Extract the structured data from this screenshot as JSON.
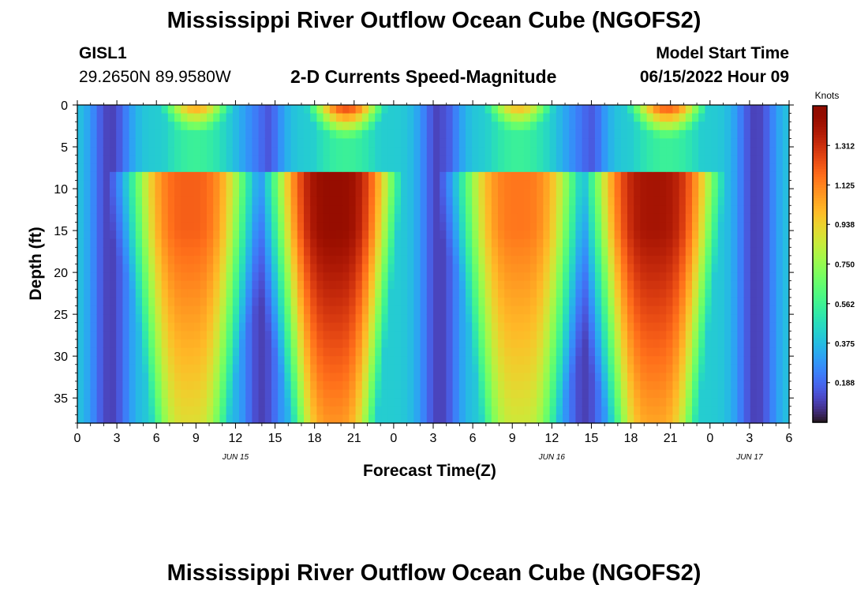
{
  "page": {
    "title": "Mississippi River Outflow Ocean Cube (NGOFS2)",
    "station_id": "GISL1",
    "station_coords": "29.2650N  89.9580W",
    "plot_title": "2-D Currents Speed-Magnitude",
    "model_start_label": "Model Start Time",
    "model_start_value": "06/15/2022 Hour 09",
    "second_title": "Mississippi River Outflow Ocean Cube (NGOFS2)"
  },
  "chart_data": {
    "type": "heatmap",
    "title": "2-D Currents Speed-Magnitude",
    "xlabel": "Forecast Time(Z)",
    "ylabel": "Depth (ft)",
    "x_tick_labels": [
      "0",
      "3",
      "6",
      "9",
      "12",
      "15",
      "18",
      "21",
      "0",
      "3",
      "6",
      "9",
      "12",
      "15",
      "18",
      "21",
      "0",
      "3",
      "6"
    ],
    "x_range_hours_from_jun15_00z": [
      0,
      54
    ],
    "date_labels": [
      {
        "label": "JUN 15",
        "hour": 12
      },
      {
        "label": "JUN 16",
        "hour": 36
      },
      {
        "label": "JUN 17",
        "hour": 51
      }
    ],
    "y_tick_labels": [
      "0",
      "5",
      "10",
      "15",
      "20",
      "25",
      "30",
      "35"
    ],
    "y_range_ft": [
      0,
      38
    ],
    "y_reversed": true,
    "colorbar": {
      "label": "Knots",
      "tick_labels": [
        "0.188",
        "0.375",
        "0.562",
        "0.750",
        "0.938",
        "1.125",
        "1.312"
      ],
      "range": [
        0.0,
        1.5
      ],
      "colormap": "turbo"
    },
    "features": [
      {
        "hour_start": 5,
        "hour_end": 13,
        "peak_hour": 8.5,
        "peak_knots": 1.2,
        "type": "ebb"
      },
      {
        "hour_start": 16.3,
        "hour_end": 24.5,
        "peak_hour": 19.5,
        "peak_knots": 1.45,
        "type": "ebb"
      },
      {
        "hour_start": 29.5,
        "hour_end": 37.5,
        "peak_hour": 33.5,
        "peak_knots": 1.15,
        "type": "ebb"
      },
      {
        "hour_start": 40.5,
        "hour_end": 49,
        "peak_hour": 43.8,
        "peak_knots": 1.4,
        "type": "ebb"
      }
    ],
    "grid": false
  }
}
